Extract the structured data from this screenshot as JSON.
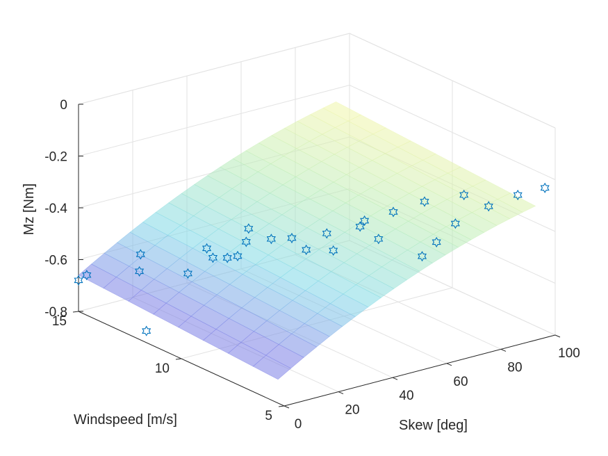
{
  "chart_data": {
    "type": "scatter",
    "subtype": "3d-scatter-with-fitted-surface",
    "title": "",
    "xlabel": "Skew [deg]",
    "ylabel": "Windspeed [m/s]",
    "zlabel": "Mz [Nm]",
    "xlim": [
      0,
      100
    ],
    "ylim": [
      5,
      15
    ],
    "zlim": [
      -0.8,
      0
    ],
    "x_ticks": [
      "0",
      "20",
      "40",
      "60",
      "80",
      "100"
    ],
    "y_ticks": [
      "5",
      "10",
      "15"
    ],
    "z_ticks": [
      "-0.8",
      "-0.6",
      "-0.4",
      "-0.2",
      "0"
    ],
    "grid": true,
    "marker": "hexagram",
    "marker_color": "#0072BD",
    "surface_colormap": [
      "#7b7fe6",
      "#7fd8e8",
      "#b8ecb8",
      "#fdf7a6"
    ],
    "series": [
      {
        "points": [
          {
            "x": 0,
            "y": 15,
            "z": -0.68
          },
          {
            "x": 0,
            "y": 14.6,
            "z": -0.645
          },
          {
            "x": 0,
            "y": 11.7,
            "z": -0.755
          },
          {
            "x": 5,
            "y": 12.7,
            "z": -0.575
          },
          {
            "x": 10,
            "y": 13.3,
            "z": -0.545
          },
          {
            "x": 10,
            "y": 11.0,
            "z": -0.535
          },
          {
            "x": 20,
            "y": 11.4,
            "z": -0.48
          },
          {
            "x": 20,
            "y": 11.1,
            "z": -0.505
          },
          {
            "x": 20,
            "y": 10.4,
            "z": -0.48
          },
          {
            "x": 20,
            "y": 9.9,
            "z": -0.455
          },
          {
            "x": 30,
            "y": 10.8,
            "z": -0.46
          },
          {
            "x": 40,
            "y": 12.0,
            "z": -0.48
          },
          {
            "x": 40,
            "y": 10.9,
            "z": -0.48
          },
          {
            "x": 40,
            "y": 9.9,
            "z": -0.44
          },
          {
            "x": 40,
            "y": 9.2,
            "z": -0.46
          },
          {
            "x": 40,
            "y": 8.2,
            "z": -0.36
          },
          {
            "x": 50,
            "y": 9.2,
            "z": -0.49
          },
          {
            "x": 50,
            "y": 7.9,
            "z": -0.35
          },
          {
            "x": 50,
            "y": 7.0,
            "z": -0.365
          },
          {
            "x": 60,
            "y": 9.0,
            "z": -0.395
          },
          {
            "x": 60,
            "y": 7.6,
            "z": -0.31
          },
          {
            "x": 60,
            "y": 6.2,
            "z": -0.43
          },
          {
            "x": 60,
            "y": 5.5,
            "z": -0.35
          },
          {
            "x": 70,
            "y": 7.4,
            "z": -0.29
          },
          {
            "x": 70,
            "y": 5.9,
            "z": -0.32
          },
          {
            "x": 80,
            "y": 6.8,
            "z": -0.27
          },
          {
            "x": 80,
            "y": 5.6,
            "z": -0.27
          },
          {
            "x": 90,
            "y": 5.5,
            "z": -0.25
          },
          {
            "x": 100,
            "y": 5.5,
            "z": -0.25
          }
        ]
      }
    ]
  }
}
